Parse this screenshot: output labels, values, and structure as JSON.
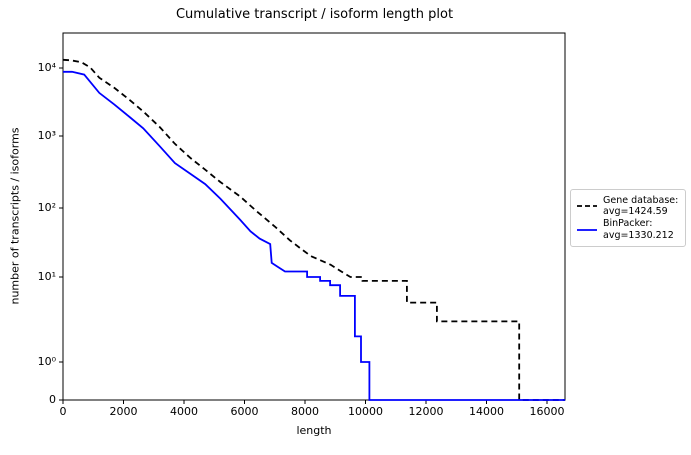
{
  "title": "Cumulative transcript / isoform length plot",
  "axes": {
    "xlabel": "length",
    "ylabel": "number of transcripts / isoforms",
    "x_tick_labels": [
      "0",
      "2000",
      "4000",
      "6000",
      "8000",
      "10000",
      "12000",
      "14000",
      "16000"
    ],
    "y_tick_labels": [
      "10⁴",
      "10³",
      "10²",
      "10¹",
      "10⁰",
      "0"
    ]
  },
  "legend": {
    "entries": [
      {
        "line1": "Gene database:",
        "line2": "avg=1424.59",
        "color": "#000000",
        "style": "dashed"
      },
      {
        "line1": "BinPacker:",
        "line2": "avg=1330.212",
        "color": "#0000ff",
        "style": "solid"
      }
    ]
  },
  "chart_data": {
    "type": "line",
    "title": "Cumulative transcript / isoform length plot",
    "xlabel": "length",
    "ylabel": "number of transcripts / isoforms",
    "xlim": [
      0,
      16600
    ],
    "yscale": "symlog",
    "ylim": [
      0,
      20000
    ],
    "grid": false,
    "legend_position": "outside-right",
    "x_ticks": [
      0,
      2000,
      4000,
      6000,
      8000,
      10000,
      12000,
      14000,
      16000
    ],
    "y_ticks": [
      {
        "value": 10000,
        "label": "10⁴"
      },
      {
        "value": 1000,
        "label": "10³"
      },
      {
        "value": 100,
        "label": "10²"
      },
      {
        "value": 10,
        "label": "10¹"
      },
      {
        "value": 1,
        "label": "10⁰"
      },
      {
        "value": 0,
        "label": "0"
      }
    ],
    "series": [
      {
        "name": "Gene database: avg=1424.59",
        "color": "#000000",
        "style": "dashed",
        "points": [
          [
            0,
            13200
          ],
          [
            250,
            13000
          ],
          [
            600,
            12200
          ],
          [
            900,
            10200
          ],
          [
            1200,
            7200
          ],
          [
            1700,
            5100
          ],
          [
            2200,
            3400
          ],
          [
            2650,
            2300
          ],
          [
            3200,
            1350
          ],
          [
            3700,
            780
          ],
          [
            4200,
            500
          ],
          [
            4700,
            340
          ],
          [
            5200,
            230
          ],
          [
            5850,
            145
          ],
          [
            6400,
            90
          ],
          [
            7000,
            54
          ],
          [
            7500,
            34
          ],
          [
            7850,
            26
          ],
          [
            8200,
            20
          ],
          [
            8850,
            15
          ],
          [
            9200,
            12
          ],
          [
            9500,
            10
          ],
          [
            9900,
            10
          ],
          [
            9900,
            9
          ],
          [
            11370,
            9
          ],
          [
            11370,
            5
          ],
          [
            12360,
            5
          ],
          [
            12360,
            3
          ],
          [
            15080,
            3
          ],
          [
            15080,
            0
          ],
          [
            16600,
            0
          ]
        ]
      },
      {
        "name": "BinPacker: avg=1330.212",
        "color": "#0000ff",
        "style": "solid",
        "points": [
          [
            0,
            8800
          ],
          [
            300,
            8800
          ],
          [
            700,
            8000
          ],
          [
            1200,
            4300
          ],
          [
            1700,
            2900
          ],
          [
            2200,
            1900
          ],
          [
            2650,
            1300
          ],
          [
            3200,
            720
          ],
          [
            3700,
            420
          ],
          [
            4200,
            300
          ],
          [
            4700,
            215
          ],
          [
            5200,
            135
          ],
          [
            5850,
            68
          ],
          [
            6200,
            46
          ],
          [
            6500,
            36
          ],
          [
            6850,
            30
          ],
          [
            6900,
            16
          ],
          [
            7100,
            14
          ],
          [
            7340,
            12
          ],
          [
            8070,
            12
          ],
          [
            8070,
            10
          ],
          [
            8500,
            10
          ],
          [
            8500,
            9
          ],
          [
            8830,
            9
          ],
          [
            8830,
            8
          ],
          [
            9160,
            8
          ],
          [
            9160,
            6
          ],
          [
            9650,
            6
          ],
          [
            9650,
            2
          ],
          [
            9850,
            2
          ],
          [
            9850,
            1
          ],
          [
            10130,
            1
          ],
          [
            10130,
            0
          ],
          [
            16600,
            0
          ]
        ]
      }
    ]
  }
}
